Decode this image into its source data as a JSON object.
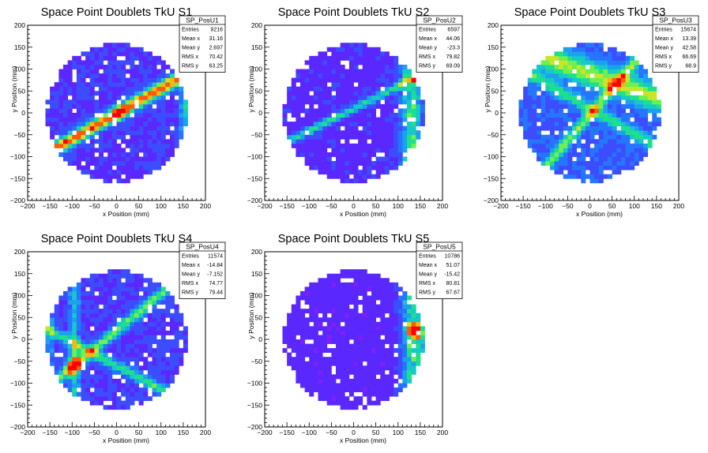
{
  "chart_data": [
    {
      "type": "heatmap",
      "title": "Space Point Doublets TkU S1",
      "xlabel": "x Position (mm)",
      "ylabel": "y Position (mm)",
      "xlim": [
        -200,
        200
      ],
      "ylim": [
        -200,
        200
      ],
      "xticks": [
        "−200",
        "−150",
        "−100",
        "−50",
        "0",
        "50",
        "100",
        "150",
        "200"
      ],
      "yticks": [
        "−200",
        "−150",
        "−100",
        "−50",
        "0",
        "50",
        "100",
        "150",
        "200"
      ],
      "stats": {
        "name": "SP_PosU1",
        "rows": [
          {
            "label": "Entries",
            "value": "9216"
          },
          {
            "label": "Mean x",
            "value": "31.16"
          },
          {
            "label": "Mean y",
            "value": "2.697"
          },
          {
            "label": "RMS x",
            "value": "70.42"
          },
          {
            "label": "RMS y",
            "value": "63.25"
          }
        ]
      },
      "fill_radius": 160,
      "bin_size": 10,
      "pattern": {
        "base": 0.12,
        "ridges": [
          {
            "cx": 20,
            "cy": 10,
            "angle_deg": 30,
            "strength": 0.75,
            "width": 10,
            "peak_x": 5,
            "peak_y": 0,
            "peak_strength": 0.3
          }
        ],
        "bands": [
          {
            "x": 155,
            "strength": 0.35,
            "width": 8
          }
        ]
      }
    },
    {
      "type": "heatmap",
      "title": "Space Point Doublets TkU S2",
      "xlabel": "x Position (mm)",
      "ylabel": "y Position (mm)",
      "xlim": [
        -200,
        200
      ],
      "ylim": [
        -200,
        200
      ],
      "xticks": [
        "−200",
        "−150",
        "−100",
        "−50",
        "0",
        "50",
        "100",
        "150",
        "200"
      ],
      "yticks": [
        "−200",
        "−150",
        "−100",
        "−50",
        "0",
        "50",
        "100",
        "150",
        "200"
      ],
      "stats": {
        "name": "SP_PosU2",
        "rows": [
          {
            "label": "Entries",
            "value": "6597"
          },
          {
            "label": "Mean x",
            "value": "44.06"
          },
          {
            "label": "Mean y",
            "value": "-23.3"
          },
          {
            "label": "RMS x",
            "value": "79.82"
          },
          {
            "label": "RMS y",
            "value": "69.09"
          }
        ]
      },
      "fill_radius": 160,
      "bin_size": 10,
      "pattern": {
        "base": 0.1,
        "ridges": [
          {
            "cx": 10,
            "cy": 15,
            "angle_deg": 27,
            "strength": 0.4,
            "width": 6
          }
        ],
        "bands": [
          {
            "x": 130,
            "strength": 0.4,
            "width": 18
          }
        ]
      }
    },
    {
      "type": "heatmap",
      "title": "Space Point Doublets TkU S3",
      "xlabel": "x Position (mm)",
      "ylabel": "y Position (mm)",
      "xlim": [
        -200,
        200
      ],
      "ylim": [
        -200,
        200
      ],
      "xticks": [
        "−200",
        "−150",
        "−100",
        "−50",
        "0",
        "50",
        "100",
        "150",
        "200"
      ],
      "yticks": [
        "−200",
        "−150",
        "−100",
        "−50",
        "0",
        "50",
        "100",
        "150",
        "200"
      ],
      "stats": {
        "name": "SP_PosU3",
        "rows": [
          {
            "label": "Entries",
            "value": "15674"
          },
          {
            "label": "Mean x",
            "value": "13.39"
          },
          {
            "label": "Mean y",
            "value": "42.58"
          },
          {
            "label": "RMS x",
            "value": "66.69"
          },
          {
            "label": "RMS y",
            "value": "68.9"
          }
        ]
      },
      "fill_radius": 160,
      "bin_size": 10,
      "pattern": {
        "base": 0.2,
        "ridges": [
          {
            "cx": 0,
            "cy": 90,
            "angle_deg": -20,
            "strength": 0.45,
            "width": 20
          },
          {
            "cx": 20,
            "cy": 20,
            "angle_deg": 50,
            "strength": 0.4,
            "width": 8
          },
          {
            "cx": 0,
            "cy": 10,
            "angle_deg": -30,
            "strength": 0.3,
            "width": 10
          }
        ],
        "bands": []
      }
    },
    {
      "type": "heatmap",
      "title": "Space Point Doublets TkU S4",
      "xlabel": "x Position (mm)",
      "ylabel": "y Position (mm)",
      "xlim": [
        -200,
        200
      ],
      "ylim": [
        -200,
        200
      ],
      "xticks": [
        "−200",
        "−150",
        "−100",
        "−50",
        "0",
        "50",
        "100",
        "150",
        "200"
      ],
      "yticks": [
        "−200",
        "−150",
        "−100",
        "−50",
        "0",
        "50",
        "100",
        "150",
        "200"
      ],
      "stats": {
        "name": "SP_PosU4",
        "rows": [
          {
            "label": "Entries",
            "value": "11574"
          },
          {
            "label": "Mean x",
            "value": "-14.84"
          },
          {
            "label": "Mean y",
            "value": "-7.152"
          },
          {
            "label": "RMS x",
            "value": "74.77"
          },
          {
            "label": "RMS y",
            "value": "79.44"
          }
        ]
      },
      "fill_radius": 160,
      "bin_size": 10,
      "pattern": {
        "base": 0.13,
        "ridges": [
          {
            "cx": -60,
            "cy": -30,
            "angle_deg": 40,
            "strength": 0.45,
            "width": 8
          },
          {
            "cx": 0,
            "cy": -60,
            "angle_deg": -28,
            "strength": 0.4,
            "width": 8
          },
          {
            "cx": -90,
            "cy": -55,
            "angle_deg": 0,
            "strength": 0.0,
            "width": 8,
            "peak_x": -95,
            "peak_y": -60,
            "peak_strength": 0.6
          }
        ],
        "bands": [
          {
            "x": -95,
            "strength": 0.3,
            "width": 8
          },
          {
            "x": -150,
            "strength": 0.2,
            "width": 6
          }
        ]
      }
    },
    {
      "type": "heatmap",
      "title": "Space Point Doublets TkU S5",
      "xlabel": "x Position (mm)",
      "ylabel": "y Position (mm)",
      "xlim": [
        -200,
        200
      ],
      "ylim": [
        -200,
        200
      ],
      "xticks": [
        "−200",
        "−150",
        "−100",
        "−50",
        "0",
        "50",
        "100",
        "150",
        "200"
      ],
      "yticks": [
        "−200",
        "−150",
        "−100",
        "−50",
        "0",
        "50",
        "100",
        "150",
        "200"
      ],
      "stats": {
        "name": "SP_PosU5",
        "rows": [
          {
            "label": "Entries",
            "value": "10786"
          },
          {
            "label": "Mean x",
            "value": "51.07"
          },
          {
            "label": "Mean y",
            "value": "-15.42"
          },
          {
            "label": "RMS x",
            "value": "80.81"
          },
          {
            "label": "RMS y",
            "value": "67.67"
          }
        ]
      },
      "fill_radius": 160,
      "bin_size": 10,
      "pattern": {
        "base": 0.08,
        "ridges": [
          {
            "cx": 130,
            "cy": 0,
            "angle_deg": 0,
            "strength": 0.0,
            "width": 8,
            "peak_x": 140,
            "peak_y": 20,
            "peak_strength": 0.7
          }
        ],
        "bands": [
          {
            "x": 135,
            "strength": 0.45,
            "width": 18
          }
        ]
      }
    }
  ],
  "colors": {
    "palette": [
      "#7d1fff",
      "#5a28ff",
      "#3c4cff",
      "#2575ff",
      "#1ca0f0",
      "#16c8c8",
      "#1ee08c",
      "#6ef050",
      "#c8e628",
      "#ffb414",
      "#ff5a0a",
      "#ff0000"
    ],
    "axis": "#000000",
    "background": "#ffffff"
  }
}
